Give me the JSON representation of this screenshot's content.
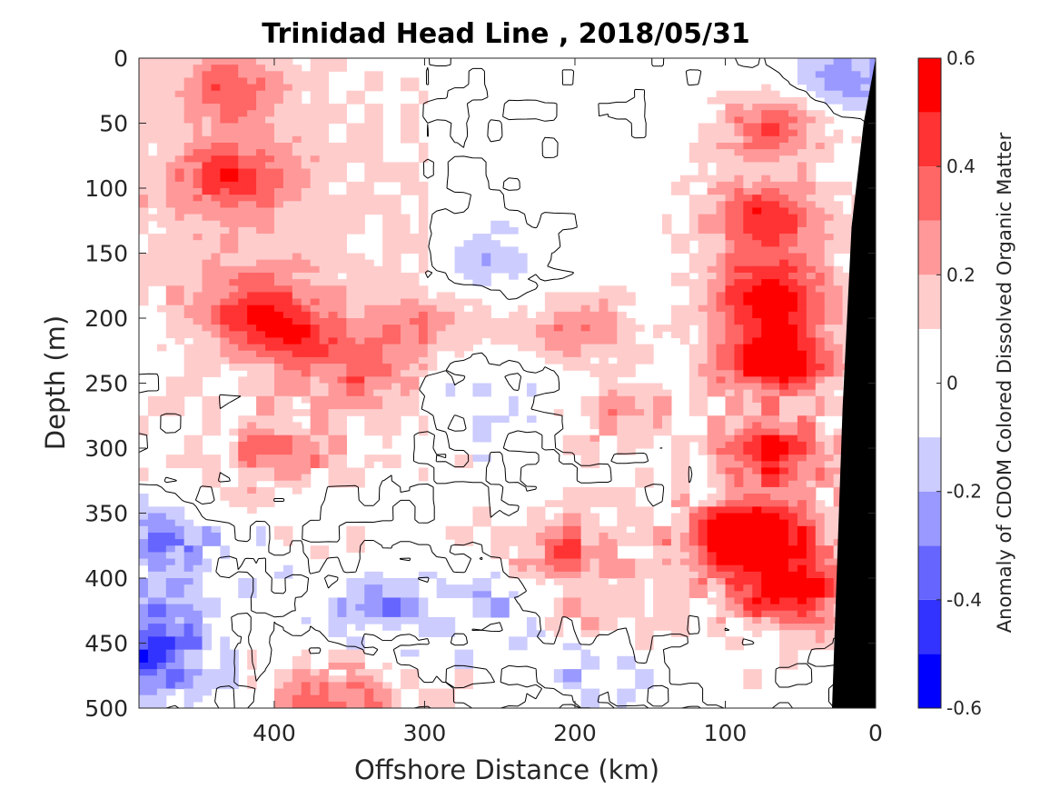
{
  "chart_data": {
    "type": "heatmap",
    "title": "Trinidad Head Line , 2018/05/31",
    "xlabel": "Offshore Distance (km)",
    "ylabel": "Depth (m)",
    "colorbar_label": "Anomaly of CDOM Colored Dissolved Organic Matter",
    "xlim": [
      490,
      0
    ],
    "ylim": [
      0,
      500
    ],
    "x_ticks": [
      400,
      300,
      200,
      100,
      0
    ],
    "x_tick_labels": [
      "400",
      "300",
      "200",
      "100",
      "0"
    ],
    "y_ticks": [
      0,
      50,
      100,
      150,
      200,
      250,
      300,
      350,
      400,
      450,
      500
    ],
    "y_tick_labels": [
      "0",
      "50",
      "100",
      "150",
      "200",
      "250",
      "300",
      "350",
      "400",
      "450",
      "500"
    ],
    "color_limits": [
      -0.6,
      0.6
    ],
    "color_levels": [
      -0.6,
      -0.5,
      -0.4,
      -0.3,
      -0.2,
      -0.1,
      0.1,
      0.2,
      0.3,
      0.4,
      0.5,
      0.6
    ],
    "colorbar_ticks": [
      0.6,
      0.4,
      0.2,
      0,
      -0.2,
      -0.4,
      -0.6
    ],
    "colorbar_tick_labels": [
      "0.6",
      "0.4",
      "0.2",
      "0",
      "-0.2",
      "-0.4",
      "-0.6"
    ],
    "colormap": [
      "#0000ff",
      "#3333ff",
      "#6666ff",
      "#9999ff",
      "#ccccff",
      "#ffffff",
      "#ffcccc",
      "#ff9999",
      "#ff6666",
      "#ff3333",
      "#ff0000"
    ],
    "bathymetry_color": "#000000",
    "zero_contour_color": "#000000",
    "features": [
      {
        "x": 430,
        "y": 90,
        "value": 0.35
      },
      {
        "x": 430,
        "y": 20,
        "value": 0.3
      },
      {
        "x": 395,
        "y": 210,
        "value": 0.35
      },
      {
        "x": 400,
        "y": 300,
        "value": 0.3
      },
      {
        "x": 420,
        "y": 185,
        "value": 0.25
      },
      {
        "x": 300,
        "y": 200,
        "value": 0.2
      },
      {
        "x": 340,
        "y": 240,
        "value": 0.25
      },
      {
        "x": 200,
        "y": 205,
        "value": 0.25
      },
      {
        "x": 270,
        "y": 60,
        "value": -0.05
      },
      {
        "x": 270,
        "y": 110,
        "value": -0.05
      },
      {
        "x": 255,
        "y": 155,
        "value": -0.2
      },
      {
        "x": 265,
        "y": 260,
        "value": -0.2
      },
      {
        "x": 170,
        "y": 275,
        "value": 0.2
      },
      {
        "x": 210,
        "y": 375,
        "value": 0.3
      },
      {
        "x": 190,
        "y": 420,
        "value": 0.2
      },
      {
        "x": 480,
        "y": 370,
        "value": -0.35
      },
      {
        "x": 485,
        "y": 440,
        "value": -0.35
      },
      {
        "x": 490,
        "y": 475,
        "value": -0.3
      },
      {
        "x": 330,
        "y": 420,
        "value": -0.25
      },
      {
        "x": 250,
        "y": 420,
        "value": -0.15
      },
      {
        "x": 200,
        "y": 470,
        "value": -0.15
      },
      {
        "x": 360,
        "y": 495,
        "value": 0.4
      },
      {
        "x": 70,
        "y": 230,
        "value": 0.6
      },
      {
        "x": 75,
        "y": 180,
        "value": 0.55
      },
      {
        "x": 75,
        "y": 120,
        "value": 0.45
      },
      {
        "x": 70,
        "y": 300,
        "value": 0.5
      },
      {
        "x": 75,
        "y": 360,
        "value": 0.5
      },
      {
        "x": 60,
        "y": 410,
        "value": 0.55
      },
      {
        "x": 100,
        "y": 370,
        "value": 0.4
      },
      {
        "x": 70,
        "y": 50,
        "value": 0.35
      },
      {
        "x": 25,
        "y": 15,
        "value": -0.3
      }
    ]
  }
}
